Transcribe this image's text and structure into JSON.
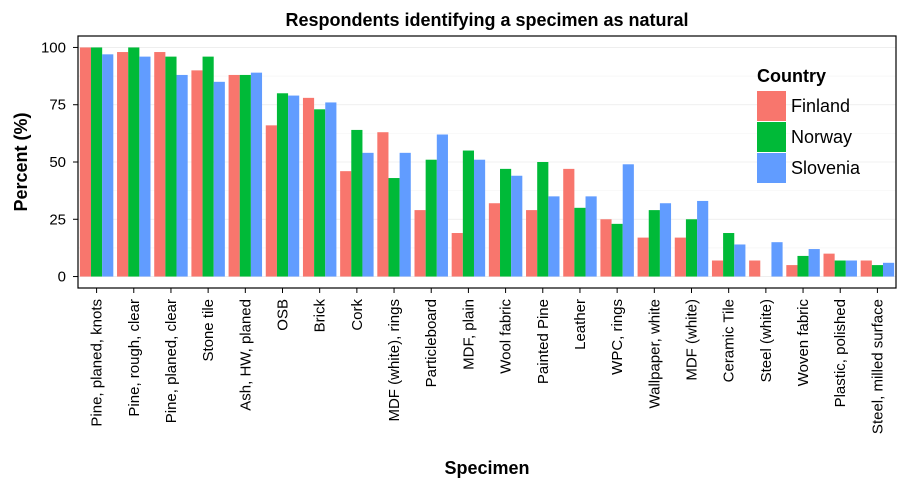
{
  "chart_data": {
    "type": "bar",
    "title": "Respondents identifying a specimen as natural",
    "xlabel": "Specimen",
    "ylabel": "Percent (%)",
    "ylim": [
      -5,
      105
    ],
    "yticks": [
      0,
      25,
      50,
      75,
      100
    ],
    "grid": true,
    "legend": {
      "title": "Country",
      "placement": "top-right"
    },
    "categories": [
      "Pine, planed, knots",
      "Pine, rough, clear",
      "Pine, planed, clear",
      "Stone tile",
      "Ash, HW, planed",
      "OSB",
      "Brick",
      "Cork",
      "MDF (white), rings",
      "Particleboard",
      "MDF, plain",
      "Wool fabric",
      "Painted Pine",
      "Leather",
      "WPC, rings",
      "Wallpaper, white",
      "MDF (white)",
      "Ceramic Tile",
      "Steel (white)",
      "Woven fabric",
      "Plastic, polished",
      "Steel, milled surface"
    ],
    "series": [
      {
        "name": "Finland",
        "color": "#F8766D",
        "values": [
          100,
          98,
          98,
          90,
          88,
          66,
          78,
          46,
          63,
          29,
          19,
          32,
          29,
          47,
          25,
          17,
          17,
          7,
          7,
          5,
          10,
          7
        ]
      },
      {
        "name": "Norway",
        "color": "#00BA38",
        "values": [
          100,
          100,
          96,
          96,
          88,
          80,
          73,
          64,
          43,
          51,
          55,
          47,
          50,
          30,
          23,
          29,
          25,
          19,
          0,
          9,
          7,
          5
        ]
      },
      {
        "name": "Slovenia",
        "color": "#619CFF",
        "values": [
          97,
          96,
          88,
          85,
          89,
          79,
          76,
          54,
          54,
          62,
          51,
          44,
          35,
          35,
          49,
          32,
          33,
          14,
          15,
          12,
          7,
          6
        ]
      }
    ]
  }
}
